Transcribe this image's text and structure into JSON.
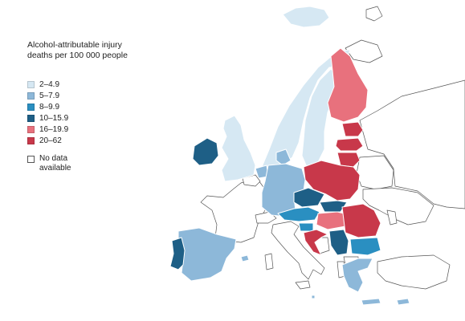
{
  "legend": {
    "title_line1": "Alcohol-attributable injury",
    "title_line2": "deaths per 100 000 people",
    "items": [
      {
        "label": "2–4.9",
        "color": "#d6e8f3"
      },
      {
        "label": "5–7.9",
        "color": "#8db8d9"
      },
      {
        "label": "8–9.9",
        "color": "#2a8fc1"
      },
      {
        "label": "10–15.9",
        "color": "#1e5f86"
      },
      {
        "label": "16–19.9",
        "color": "#e8717d"
      },
      {
        "label": "20–62",
        "color": "#c8384a"
      }
    ],
    "nodata_line1": "No data",
    "nodata_line2": "available"
  },
  "countries": {
    "iceland": "#d6e8f3",
    "ireland": "#1e5f86",
    "uk": "#d6e8f3",
    "norway": "#d6e8f3",
    "sweden": "#d6e8f3",
    "finland": "#e8717d",
    "estonia": "#c8384a",
    "latvia": "#c8384a",
    "lithuania": "#c8384a",
    "poland": "#c8384a",
    "germany": "#8db8d9",
    "denmark": "#8db8d9",
    "netherlands": "#8db8d9",
    "czechia": "#1e5f86",
    "slovakia": "#1e5f86",
    "austria": "#2a8fc1",
    "hungary": "#e8717d",
    "slovenia": "#2a8fc1",
    "croatia": "#c8384a",
    "romania": "#c8384a",
    "serbia": "#1e5f86",
    "bulgaria": "#2a8fc1",
    "greece": "#8db8d9",
    "spain": "#8db8d9",
    "portugal": "#1e5f86",
    "malta": "#8db8d9",
    "cyprus": "#8db8d9"
  }
}
